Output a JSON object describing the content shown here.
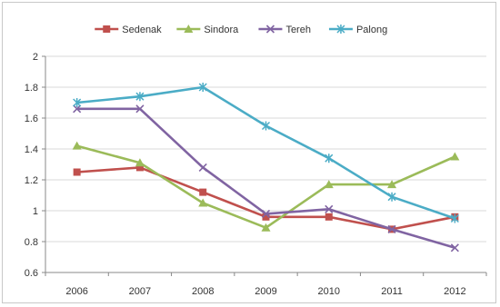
{
  "chart_data": {
    "type": "line",
    "title": "",
    "xlabel": "",
    "ylabel": "",
    "categories": [
      "2006",
      "2007",
      "2008",
      "2009",
      "2010",
      "2011",
      "2012"
    ],
    "ylim": [
      0.6,
      2
    ],
    "yticks": [
      "0.6",
      "0.8",
      "1",
      "1.2",
      "1.4",
      "1.6",
      "1.8",
      "2"
    ],
    "grid": "horizontal",
    "legend_position": "top",
    "series": [
      {
        "name": "Sedenak",
        "color": "#c0504d",
        "marker": "square",
        "values": [
          1.25,
          1.28,
          1.12,
          0.96,
          0.96,
          0.88,
          0.96
        ]
      },
      {
        "name": "Sindora",
        "color": "#9bbb59",
        "marker": "triangle",
        "values": [
          1.42,
          1.31,
          1.05,
          0.89,
          1.17,
          1.17,
          1.35
        ]
      },
      {
        "name": "Tereh",
        "color": "#8064a2",
        "marker": "x",
        "values": [
          1.66,
          1.66,
          1.28,
          0.98,
          1.01,
          0.88,
          0.76
        ]
      },
      {
        "name": "Palong",
        "color": "#4bacc6",
        "marker": "star",
        "values": [
          1.7,
          1.74,
          1.8,
          1.55,
          1.34,
          1.09,
          0.95
        ]
      }
    ]
  }
}
